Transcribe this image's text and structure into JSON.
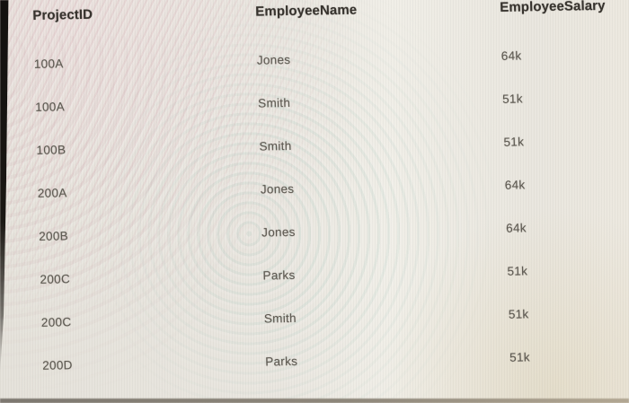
{
  "table": {
    "headers": [
      "ProjectID",
      "EmployeeName",
      "EmployeeSalary"
    ],
    "rows": [
      [
        "100A",
        "Jones",
        "64k"
      ],
      [
        "100A",
        "Smith",
        "51k"
      ],
      [
        "100B",
        "Smith",
        "51k"
      ],
      [
        "200A",
        "Jones",
        "64k"
      ],
      [
        "200B",
        "Jones",
        "64k"
      ],
      [
        "200C",
        "Parks",
        "51k"
      ],
      [
        "200C",
        "Smith",
        "51k"
      ],
      [
        "200D",
        "Parks",
        "51k"
      ]
    ]
  },
  "chart_data": {
    "type": "table",
    "title": "",
    "columns": [
      "ProjectID",
      "EmployeeName",
      "EmployeeSalary"
    ],
    "rows": [
      {
        "ProjectID": "100A",
        "EmployeeName": "Jones",
        "EmployeeSalary": "64k"
      },
      {
        "ProjectID": "100A",
        "EmployeeName": "Smith",
        "EmployeeSalary": "51k"
      },
      {
        "ProjectID": "100B",
        "EmployeeName": "Smith",
        "EmployeeSalary": "51k"
      },
      {
        "ProjectID": "200A",
        "EmployeeName": "Jones",
        "EmployeeSalary": "64k"
      },
      {
        "ProjectID": "200B",
        "EmployeeName": "Jones",
        "EmployeeSalary": "64k"
      },
      {
        "ProjectID": "200C",
        "EmployeeName": "Parks",
        "EmployeeSalary": "51k"
      },
      {
        "ProjectID": "200C",
        "EmployeeName": "Smith",
        "EmployeeSalary": "51k"
      },
      {
        "ProjectID": "200D",
        "EmployeeName": "Parks",
        "EmployeeSalary": "51k"
      }
    ]
  },
  "colors": {
    "background": "#e9e6df",
    "header_text": "#37332e",
    "cell_text": "#5e5a52",
    "left_bezel": "#131110",
    "bottom_bezel": "#8e877b",
    "moire_pink": "#d6a5af",
    "moire_teal": "#96c3b9"
  }
}
